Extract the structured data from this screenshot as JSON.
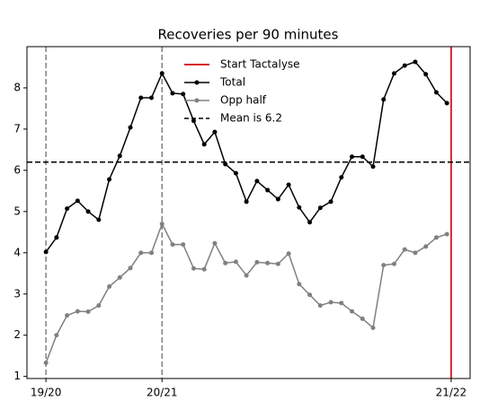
{
  "chart_data": {
    "type": "line",
    "title": "Recoveries per 90 minutes",
    "x": [
      0,
      1,
      2,
      3,
      4,
      5,
      6,
      7,
      8,
      9,
      10,
      11,
      12,
      13,
      14,
      15,
      16,
      17,
      18,
      19,
      20,
      21,
      22,
      23,
      24,
      25,
      26,
      27,
      28,
      29,
      30,
      31,
      32,
      33,
      34,
      35,
      36,
      37,
      38
    ],
    "series": [
      {
        "name": "Total",
        "color": "#000000",
        "values": [
          4.02,
          4.37,
          5.07,
          5.26,
          5.0,
          4.8,
          5.78,
          6.35,
          7.04,
          7.76,
          7.76,
          8.35,
          7.87,
          7.85,
          7.2,
          6.63,
          6.93,
          6.15,
          5.93,
          5.24,
          5.74,
          5.52,
          5.3,
          5.65,
          5.1,
          4.74,
          5.09,
          5.24,
          5.83,
          6.33,
          6.33,
          6.09,
          7.72,
          8.35,
          8.54,
          8.63,
          8.33,
          7.89,
          7.63
        ]
      },
      {
        "name": "Opp half",
        "color": "#808080",
        "values": [
          1.33,
          2.0,
          2.48,
          2.58,
          2.57,
          2.72,
          3.18,
          3.4,
          3.63,
          4.0,
          4.0,
          4.7,
          4.2,
          4.2,
          3.62,
          3.6,
          4.23,
          3.75,
          3.78,
          3.45,
          3.77,
          3.75,
          3.73,
          3.98,
          3.24,
          2.98,
          2.72,
          2.8,
          2.78,
          2.58,
          2.4,
          2.18,
          3.7,
          3.73,
          4.08,
          4.0,
          4.15,
          4.37,
          4.45
        ]
      }
    ],
    "start_line": {
      "name": "Start Tactalyse",
      "color": "#d62728",
      "value": 38.4
    },
    "mean_line": {
      "name": "Mean is 6.2",
      "color": "#000000",
      "value": 6.2
    },
    "vlines": [
      0,
      11
    ],
    "xlim": [
      -1.8,
      40.2
    ],
    "ylim": [
      0.95,
      9.0
    ],
    "xticks": [
      {
        "value": 0,
        "label": "19/20"
      },
      {
        "value": 11,
        "label": "20/21"
      },
      {
        "value": 38.4,
        "label": "21/22"
      }
    ],
    "yticks": [
      1,
      2,
      3,
      4,
      5,
      6,
      7,
      8
    ],
    "legend": "upper center"
  }
}
